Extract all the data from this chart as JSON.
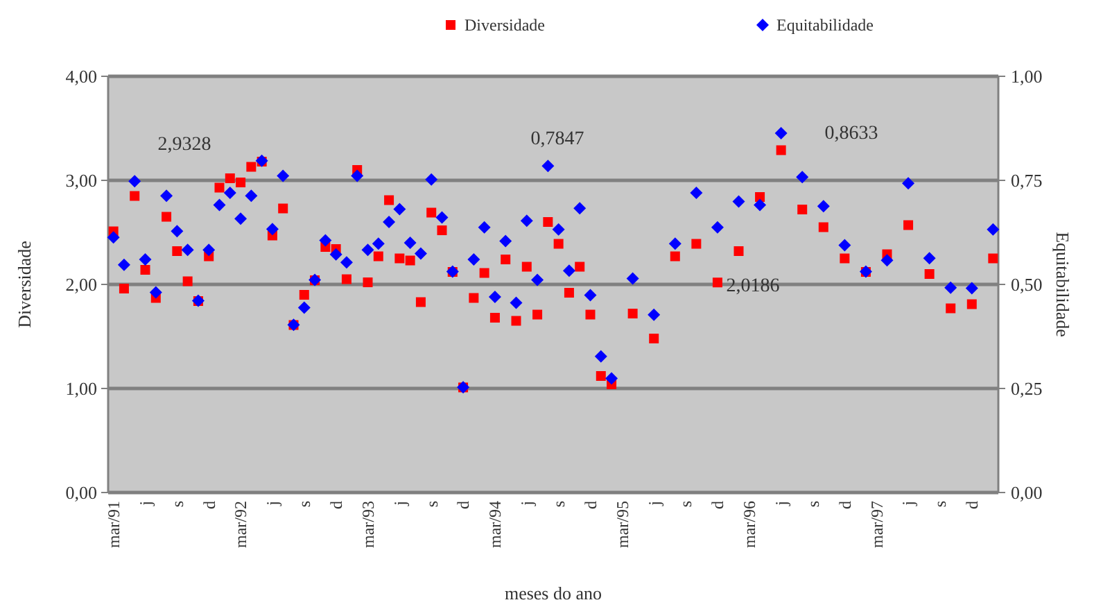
{
  "chart_data": {
    "type": "scatter",
    "xlabel": "meses do ano",
    "ylabel": "Diversidade",
    "y2label": "Equitabilidade",
    "categories": [
      "mar/91",
      null,
      null,
      "j",
      null,
      null,
      "s",
      null,
      null,
      "d",
      null,
      null,
      "mar/92",
      null,
      null,
      "j",
      null,
      null,
      "s",
      null,
      null,
      "d",
      null,
      null,
      "mar/93",
      null,
      null,
      "j",
      null,
      null,
      "s",
      null,
      null,
      "d",
      null,
      null,
      "mar/94",
      null,
      null,
      "j",
      null,
      null,
      "s",
      null,
      null,
      "d",
      null,
      null,
      "mar/95",
      null,
      null,
      "j",
      null,
      null,
      "s",
      null,
      null,
      "d",
      null,
      null,
      "mar/96",
      null,
      null,
      "j",
      null,
      null,
      "s",
      null,
      null,
      "d",
      null,
      null,
      "mar/97",
      null,
      null,
      "j",
      null,
      null,
      "s",
      null,
      null,
      "d",
      null,
      null
    ],
    "series": [
      {
        "name": "Diversidade",
        "color": "#ff0000",
        "marker": "square",
        "values": [
          2.51,
          1.96,
          2.85,
          2.14,
          1.87,
          2.65,
          2.32,
          2.03,
          1.84,
          2.27,
          2.93,
          3.02,
          2.98,
          3.13,
          3.18,
          2.47,
          2.73,
          1.61,
          1.9,
          2.04,
          2.36,
          2.34,
          2.05,
          3.1,
          2.02,
          2.27,
          2.81,
          2.25,
          2.23,
          1.83,
          2.69,
          2.52,
          2.12,
          1.01,
          1.87,
          2.11,
          1.68,
          2.24,
          1.65,
          2.17,
          1.71,
          2.6,
          2.39,
          1.92,
          2.17,
          1.71,
          1.12,
          1.04,
          null,
          1.72,
          null,
          1.48,
          null,
          2.27,
          null,
          2.39,
          null,
          2.0186,
          null,
          2.32,
          null,
          2.84,
          null,
          3.29,
          null,
          2.72,
          null,
          2.55,
          null,
          2.25,
          null,
          2.12,
          null,
          2.29,
          null,
          2.57,
          null,
          2.1,
          null,
          1.77,
          null,
          1.81,
          null,
          2.25
        ]
      },
      {
        "name": "Equitabilidade",
        "color": "#0000ff",
        "marker": "diamond",
        "axis": "y2",
        "values": [
          0.613,
          0.547,
          0.748,
          0.56,
          0.481,
          0.713,
          0.628,
          0.583,
          0.461,
          0.583,
          0.691,
          0.72,
          0.658,
          0.713,
          0.797,
          0.633,
          0.761,
          0.403,
          0.444,
          0.511,
          0.606,
          0.572,
          0.553,
          0.761,
          0.583,
          0.598,
          0.65,
          0.681,
          0.6,
          0.574,
          0.752,
          0.661,
          0.531,
          0.253,
          0.56,
          0.637,
          0.47,
          0.604,
          0.456,
          0.653,
          0.511,
          0.7847,
          0.632,
          0.533,
          0.683,
          0.474,
          0.327,
          0.274,
          null,
          0.514,
          null,
          0.427,
          null,
          0.598,
          null,
          0.72,
          null,
          0.637,
          null,
          0.699,
          null,
          0.691,
          null,
          0.8633,
          null,
          0.758,
          null,
          0.688,
          null,
          0.594,
          null,
          0.531,
          null,
          0.558,
          null,
          0.743,
          null,
          0.563,
          null,
          0.492,
          null,
          0.491,
          null,
          0.632
        ]
      }
    ],
    "ylim": [
      0,
      4
    ],
    "yticks": [
      {
        "value": 0,
        "label": "0,00"
      },
      {
        "value": 1,
        "label": "1,00"
      },
      {
        "value": 2,
        "label": "2,00"
      },
      {
        "value": 3,
        "label": "3,00"
      },
      {
        "value": 4,
        "label": "4,00"
      }
    ],
    "y2lim": [
      0,
      1
    ],
    "y2ticks": [
      {
        "value": 0,
        "label": "0,00"
      },
      {
        "value": 0.25,
        "label": "0,25"
      },
      {
        "value": 0.5,
        "label": "0,50"
      },
      {
        "value": 0.75,
        "label": "0,75"
      },
      {
        "value": 1,
        "label": "1,00"
      }
    ],
    "grid": "y",
    "legend": "top",
    "annotations": [
      "2,9328",
      "0,7847",
      "0,8633",
      "2,0186"
    ]
  }
}
